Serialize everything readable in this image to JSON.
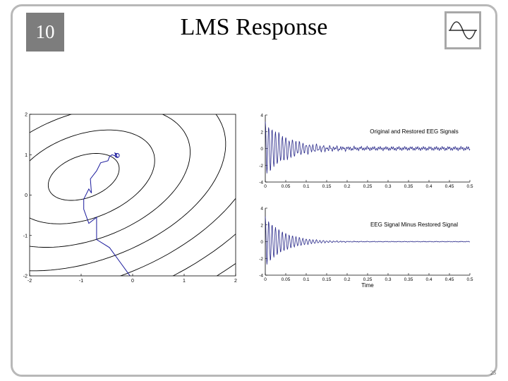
{
  "slide": {
    "chapter": "10",
    "title": "LMS Response",
    "page_number": "25",
    "icon": "sine-wave-icon"
  },
  "colors": {
    "badge": "#7d7d7d",
    "frame": "#b8b8b8",
    "trajectory": "#1a1a9c",
    "signal": "#2a2a8a",
    "contour": "#000000"
  },
  "chart_data": [
    {
      "type": "contour",
      "title": "",
      "xlim": [
        -2,
        2
      ],
      "ylim": [
        -2,
        2
      ],
      "x_ticks": [
        "-2",
        "-1",
        "0",
        "1",
        "2"
      ],
      "y_ticks": [
        "-2",
        "-1",
        "0",
        "1",
        "2"
      ],
      "contours": {
        "center": [
          -0.95,
          0.45
        ],
        "semi_axes": [
          0.75,
          0.5
        ],
        "rotation_deg": 32,
        "levels": [
          1,
          2,
          3,
          4,
          5,
          6,
          7,
          8
        ]
      },
      "trajectory": {
        "name": "",
        "points": [
          [
            -0.05,
            -2.0
          ],
          [
            -0.25,
            -1.65
          ],
          [
            -0.45,
            -1.3
          ],
          [
            -0.7,
            -1.1
          ],
          [
            -0.7,
            -0.55
          ],
          [
            -0.85,
            -0.7
          ],
          [
            -0.95,
            -0.35
          ],
          [
            -0.95,
            -0.1
          ],
          [
            -0.85,
            0.15
          ],
          [
            -0.8,
            0.05
          ],
          [
            -0.82,
            0.4
          ],
          [
            -0.7,
            0.6
          ],
          [
            -0.62,
            0.8
          ],
          [
            -0.48,
            0.85
          ],
          [
            -0.45,
            0.95
          ],
          [
            -0.4,
            1.0
          ],
          [
            -0.3,
            0.95
          ],
          [
            -0.35,
            1.05
          ],
          [
            -0.3,
            1.0
          ]
        ],
        "end_marker": [
          -0.3,
          0.98
        ]
      }
    },
    {
      "type": "line",
      "title": "Original and Restored EEG Signals",
      "xlabel": "",
      "xlim": [
        0,
        0.5
      ],
      "ylim": [
        -4,
        4
      ],
      "x_ticks": [
        "0",
        "0.05",
        "0.1",
        "0.15",
        "0.2",
        "0.25",
        "0.3",
        "0.35",
        "0.4",
        "0.45",
        "0.5"
      ],
      "y_ticks": [
        "-4",
        "-2",
        "0",
        "2",
        "4"
      ],
      "series": [
        {
          "name": "",
          "amp": 3.2,
          "decay": 18,
          "freq": 120,
          "noise": 0.25
        }
      ]
    },
    {
      "type": "line",
      "title": "EEG Signal Minus Restored Signal",
      "xlabel": "Time",
      "xlim": [
        0,
        0.5
      ],
      "ylim": [
        -4,
        4
      ],
      "x_ticks": [
        "0",
        "0.05",
        "0.1",
        "0.15",
        "0.2",
        "0.25",
        "0.3",
        "0.35",
        "0.4",
        "0.45",
        "0.5"
      ],
      "y_ticks": [
        "-4",
        "-2",
        "0",
        "2",
        "4"
      ],
      "series": [
        {
          "name": "",
          "amp": 3.0,
          "decay": 22,
          "freq": 120,
          "noise": 0.05
        }
      ]
    }
  ]
}
